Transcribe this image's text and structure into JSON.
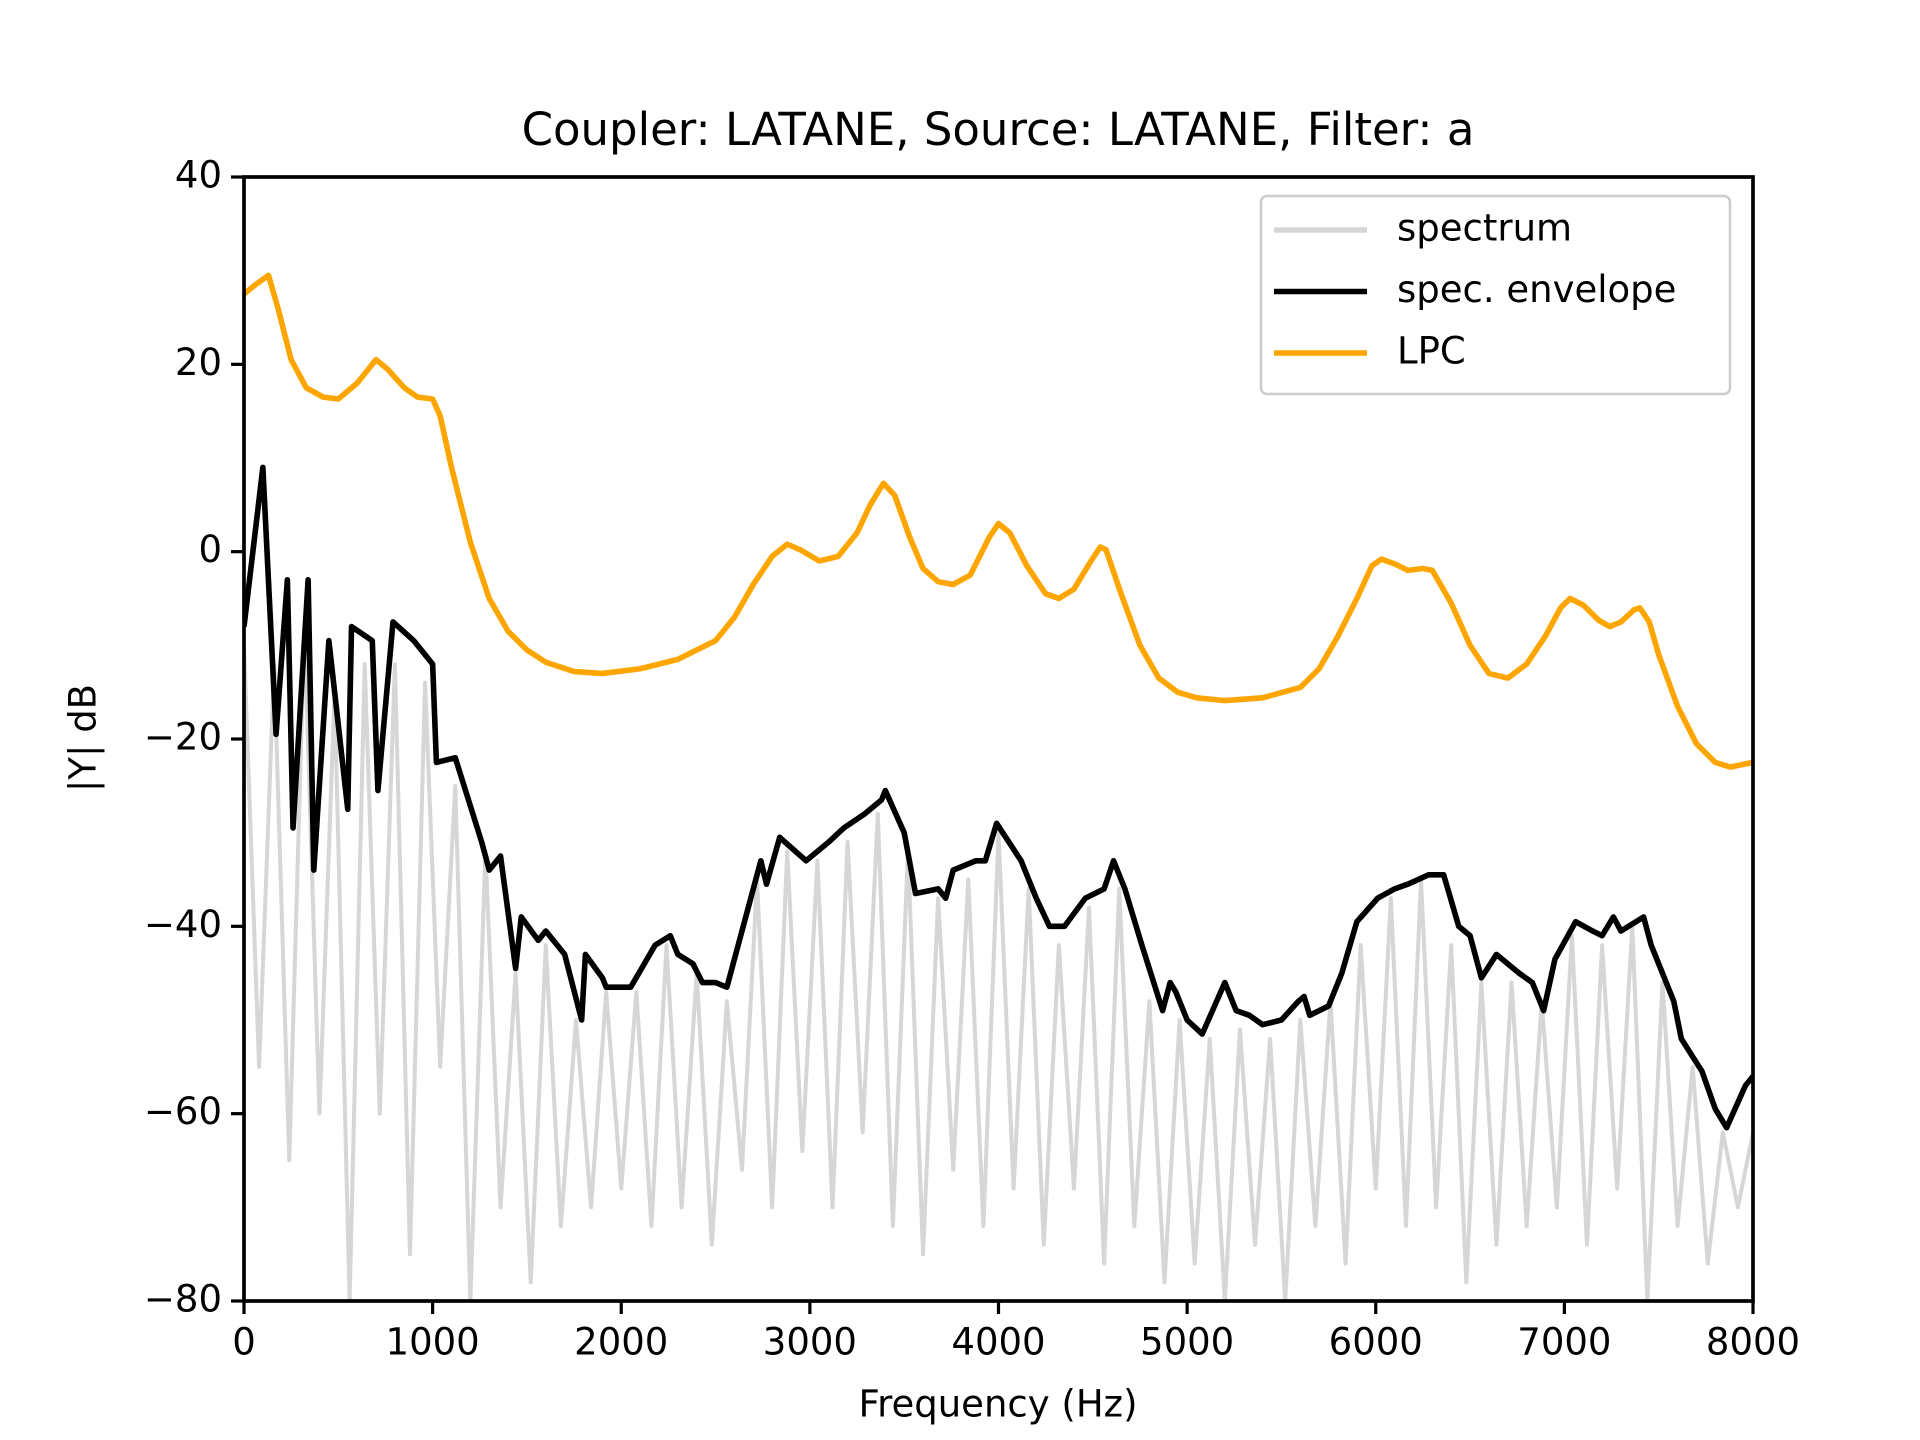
{
  "chart_data": {
    "type": "line",
    "title": "Coupler: LATANE, Source: LATANE, Filter: a",
    "xlabel": "Frequency (Hz)",
    "ylabel": "|Y| dB",
    "xlim": [
      0,
      8000
    ],
    "ylim": [
      -80,
      40
    ],
    "xticks": [
      0,
      1000,
      2000,
      3000,
      4000,
      5000,
      6000,
      7000,
      8000
    ],
    "yticks": [
      {
        "value": -80,
        "label": "−80"
      },
      {
        "value": -60,
        "label": "−60"
      },
      {
        "value": -40,
        "label": "−40"
      },
      {
        "value": -20,
        "label": "−20"
      },
      0,
      20,
      40
    ],
    "legend": "upper right",
    "series": [
      {
        "name": "spectrum",
        "color": "#d6d6d6",
        "x": [
          0,
          80,
          160,
          240,
          320,
          400,
          480,
          560,
          640,
          720,
          800,
          880,
          960,
          1040,
          1120,
          1200,
          1280,
          1360,
          1440,
          1520,
          1600,
          1680,
          1760,
          1840,
          1920,
          2000,
          2080,
          2160,
          2240,
          2320,
          2400,
          2480,
          2560,
          2640,
          2720,
          2800,
          2880,
          2960,
          3040,
          3120,
          3200,
          3280,
          3360,
          3440,
          3520,
          3600,
          3680,
          3760,
          3840,
          3920,
          4000,
          4080,
          4160,
          4240,
          4320,
          4400,
          4480,
          4560,
          4640,
          4720,
          4800,
          4880,
          4960,
          5040,
          5120,
          5200,
          5280,
          5360,
          5440,
          5520,
          5600,
          5680,
          5760,
          5840,
          5920,
          6000,
          6080,
          6160,
          6240,
          6320,
          6400,
          6480,
          6560,
          6640,
          6720,
          6800,
          6880,
          6960,
          7040,
          7120,
          7200,
          7280,
          7360,
          7440,
          7520,
          7600,
          7680,
          7760,
          7840,
          7920,
          8000
        ],
        "values": [
          -10,
          -55,
          -12,
          -65,
          -8,
          -60,
          -15,
          -80,
          -12,
          -60,
          -12,
          -75,
          -14,
          -55,
          -25,
          -80,
          -32,
          -70,
          -45,
          -78,
          -42,
          -72,
          -50,
          -70,
          -47,
          -68,
          -47,
          -72,
          -42,
          -70,
          -45,
          -74,
          -48,
          -66,
          -35,
          -70,
          -32,
          -64,
          -33,
          -70,
          -31,
          -62,
          -28,
          -72,
          -32,
          -75,
          -37,
          -66,
          -35,
          -72,
          -30,
          -68,
          -36,
          -74,
          -42,
          -68,
          -38,
          -76,
          -36,
          -72,
          -48,
          -78,
          -50,
          -76,
          -52,
          -80,
          -51,
          -74,
          -52,
          -80,
          -50,
          -72,
          -48,
          -76,
          -42,
          -68,
          -37,
          -72,
          -35,
          -70,
          -42,
          -78,
          -46,
          -74,
          -46,
          -72,
          -48,
          -70,
          -41,
          -74,
          -42,
          -68,
          -40,
          -80,
          -46,
          -72,
          -55,
          -76,
          -62,
          -70,
          -62
        ]
      },
      {
        "name": "spec. envelope",
        "color": "#000000",
        "x": [
          0,
          100,
          170,
          230,
          260,
          340,
          370,
          450,
          550,
          570,
          680,
          710,
          790,
          900,
          1000,
          1020,
          1120,
          1260,
          1300,
          1360,
          1440,
          1470,
          1560,
          1600,
          1700,
          1790,
          1810,
          1900,
          1920,
          2050,
          2180,
          2260,
          2300,
          2380,
          2430,
          2500,
          2560,
          2620,
          2740,
          2770,
          2840,
          2980,
          3100,
          3180,
          3290,
          3380,
          3400,
          3500,
          3560,
          3680,
          3720,
          3760,
          3880,
          3930,
          3990,
          4120,
          4200,
          4270,
          4350,
          4460,
          4560,
          4610,
          4670,
          4760,
          4870,
          4910,
          4940,
          5000,
          5080,
          5200,
          5260,
          5330,
          5400,
          5500,
          5590,
          5620,
          5650,
          5750,
          5820,
          5900,
          6010,
          6100,
          6170,
          6280,
          6360,
          6440,
          6500,
          6560,
          6640,
          6760,
          6830,
          6890,
          6950,
          7060,
          7150,
          7200,
          7260,
          7300,
          7420,
          7460,
          7580,
          7620,
          7730,
          7800,
          7860,
          7960,
          8000
        ],
        "values": [
          -8,
          9,
          -19.5,
          -3,
          -29.5,
          -3,
          -34,
          -9.5,
          -27.5,
          -8,
          -9.5,
          -25.5,
          -7.5,
          -9.5,
          -12,
          -22.5,
          -22,
          -31,
          -34,
          -32.5,
          -44.5,
          -39,
          -41.5,
          -40.5,
          -43,
          -50,
          -43,
          -45.5,
          -46.5,
          -46.5,
          -42,
          -41,
          -43,
          -44,
          -46,
          -46,
          -46.5,
          -42,
          -33,
          -35.5,
          -30.5,
          -33,
          -31,
          -29.5,
          -28,
          -26.5,
          -25.5,
          -30,
          -36.5,
          -36,
          -37,
          -34,
          -33,
          -33,
          -29,
          -33,
          -37,
          -40,
          -40,
          -37,
          -36,
          -33,
          -36,
          -42,
          -49,
          -46,
          -47,
          -50,
          -51.5,
          -46,
          -49,
          -49.5,
          -50.5,
          -50,
          -48,
          -47.5,
          -49.5,
          -48.5,
          -45,
          -39.5,
          -37,
          -36,
          -35.5,
          -34.5,
          -34.5,
          -40,
          -41,
          -45.5,
          -43,
          -45,
          -46,
          -49,
          -43.5,
          -39.5,
          -40.5,
          -41,
          -39,
          -40.5,
          -39,
          -42,
          -48,
          -52,
          -55.5,
          -59.5,
          -61.5,
          -57,
          -56
        ]
      },
      {
        "name": "LPC",
        "color": "#ffa500",
        "x": [
          0,
          60,
          130,
          180,
          250,
          330,
          420,
          500,
          600,
          700,
          760,
          850,
          920,
          1000,
          1040,
          1100,
          1200,
          1300,
          1400,
          1500,
          1600,
          1750,
          1900,
          2100,
          2300,
          2500,
          2600,
          2700,
          2800,
          2880,
          2950,
          3050,
          3150,
          3250,
          3320,
          3390,
          3450,
          3530,
          3600,
          3680,
          3760,
          3850,
          3950,
          4000,
          4060,
          4150,
          4250,
          4320,
          4400,
          4490,
          4540,
          4570,
          4650,
          4750,
          4850,
          4950,
          5050,
          5200,
          5400,
          5600,
          5700,
          5800,
          5900,
          5980,
          6030,
          6100,
          6170,
          6250,
          6300,
          6400,
          6500,
          6600,
          6700,
          6800,
          6900,
          6980,
          7030,
          7100,
          7180,
          7240,
          7300,
          7370,
          7400,
          7450,
          7500,
          7600,
          7700,
          7800,
          7880,
          7950,
          8000
        ],
        "values": [
          27.5,
          28.5,
          29.5,
          26,
          20.5,
          17.5,
          16.5,
          16.3,
          18,
          20.5,
          19.5,
          17.5,
          16.5,
          16.3,
          14.5,
          9,
          1,
          -5,
          -8.5,
          -10.5,
          -11.8,
          -12.8,
          -13,
          -12.5,
          -11.5,
          -9.5,
          -7,
          -3.5,
          -0.5,
          0.8,
          0.2,
          -1,
          -0.5,
          2,
          5,
          7.3,
          6,
          1.5,
          -1.8,
          -3.2,
          -3.5,
          -2.5,
          1.5,
          3,
          2,
          -1.5,
          -4.5,
          -5,
          -4,
          -1,
          0.5,
          0.2,
          -4.5,
          -10,
          -13.5,
          -15,
          -15.6,
          -15.9,
          -15.6,
          -14.5,
          -12.5,
          -9,
          -5,
          -1.5,
          -0.8,
          -1.3,
          -2,
          -1.8,
          -2,
          -5.5,
          -10,
          -13,
          -13.5,
          -12,
          -9,
          -6,
          -5,
          -5.7,
          -7.3,
          -8,
          -7.5,
          -6.2,
          -6,
          -7.5,
          -11,
          -16.5,
          -20.5,
          -22.5,
          -23,
          -22.7,
          -22.5
        ]
      }
    ]
  }
}
